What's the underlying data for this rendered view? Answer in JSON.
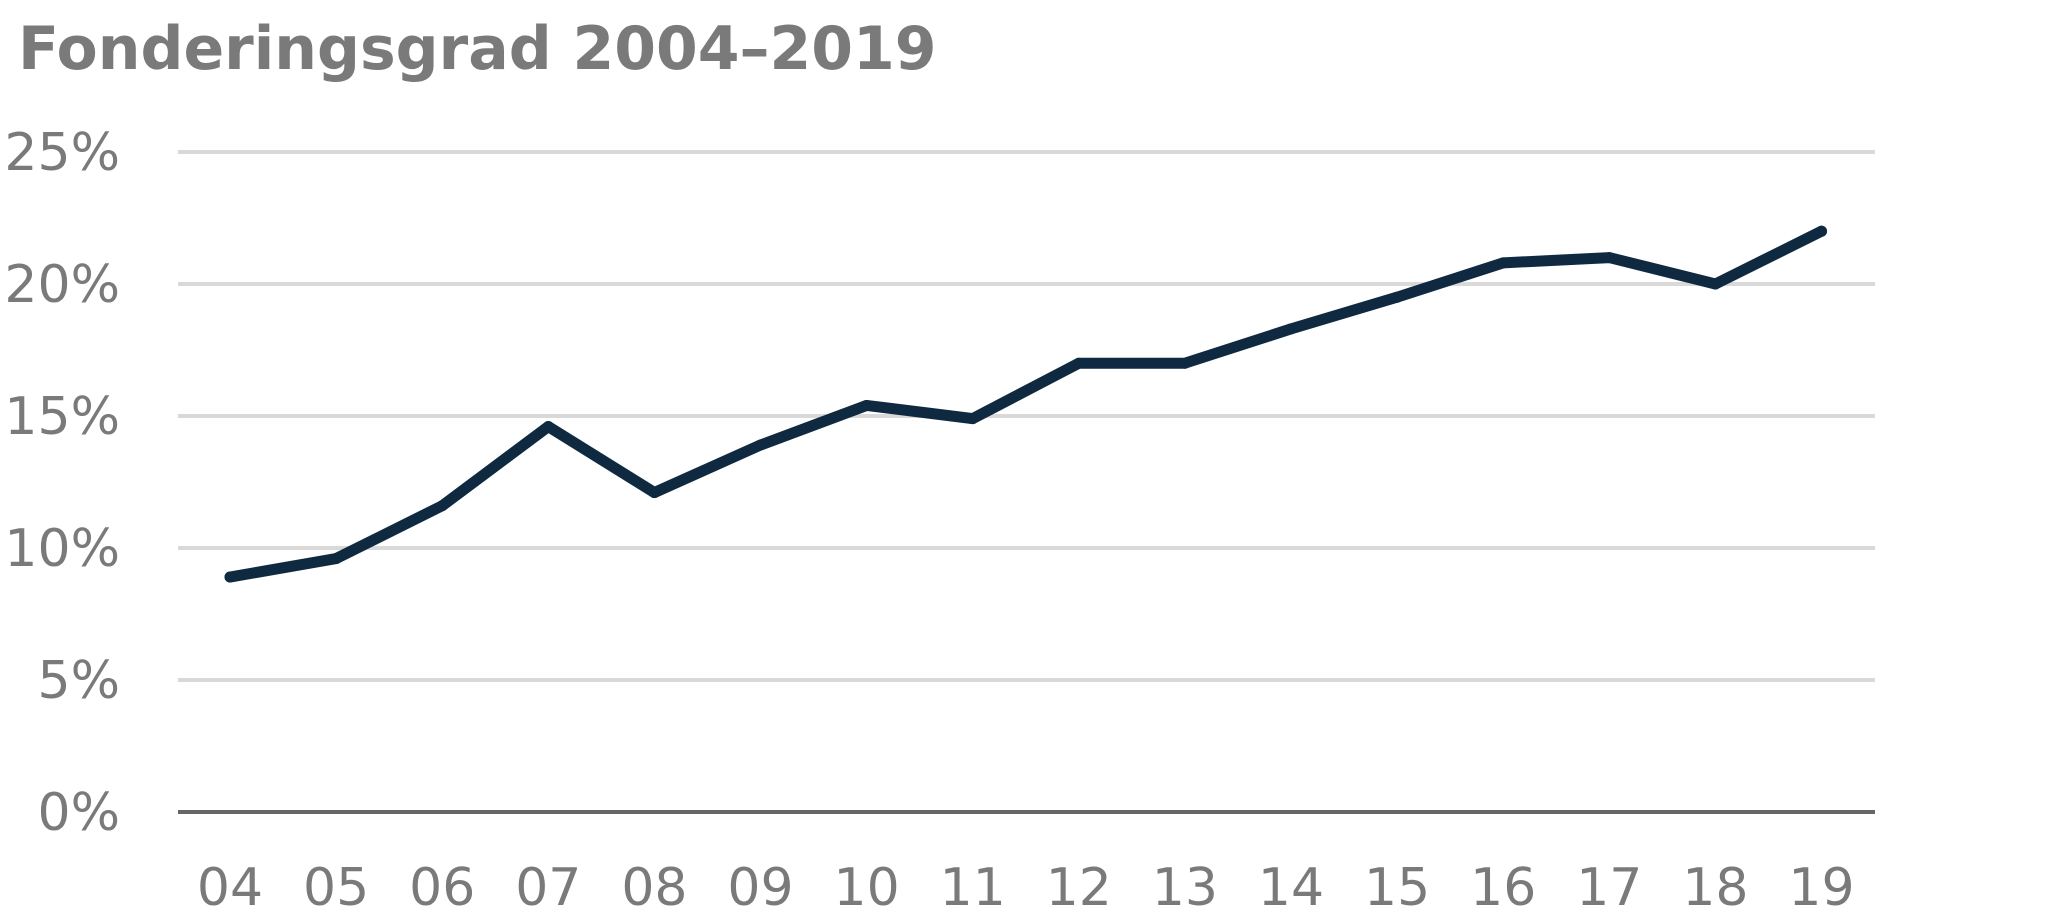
{
  "chart_data": {
    "type": "line",
    "title": "Fonderingsgrad 2004–2019",
    "xlabel": "",
    "ylabel": "",
    "categories": [
      "04",
      "05",
      "06",
      "07",
      "08",
      "09",
      "10",
      "11",
      "12",
      "13",
      "14",
      "15",
      "16",
      "17",
      "18",
      "19"
    ],
    "y_tick_labels": [
      "0%",
      "5%",
      "10%",
      "15%",
      "20%",
      "25%"
    ],
    "y_ticks": [
      0,
      5,
      10,
      15,
      20,
      25
    ],
    "ylim": [
      0,
      25
    ],
    "grid": true,
    "series": [
      {
        "values": [
          8.9,
          9.6,
          11.6,
          14.6,
          12.1,
          13.9,
          15.4,
          14.9,
          17.0,
          17.0,
          18.3,
          19.5,
          20.8,
          21.0,
          20.0,
          22.0
        ]
      }
    ],
    "colors": {
      "line": "#0f2a40",
      "grid": "#d9d9d9",
      "axis": "#666666",
      "text": "#7a7a7a"
    }
  }
}
